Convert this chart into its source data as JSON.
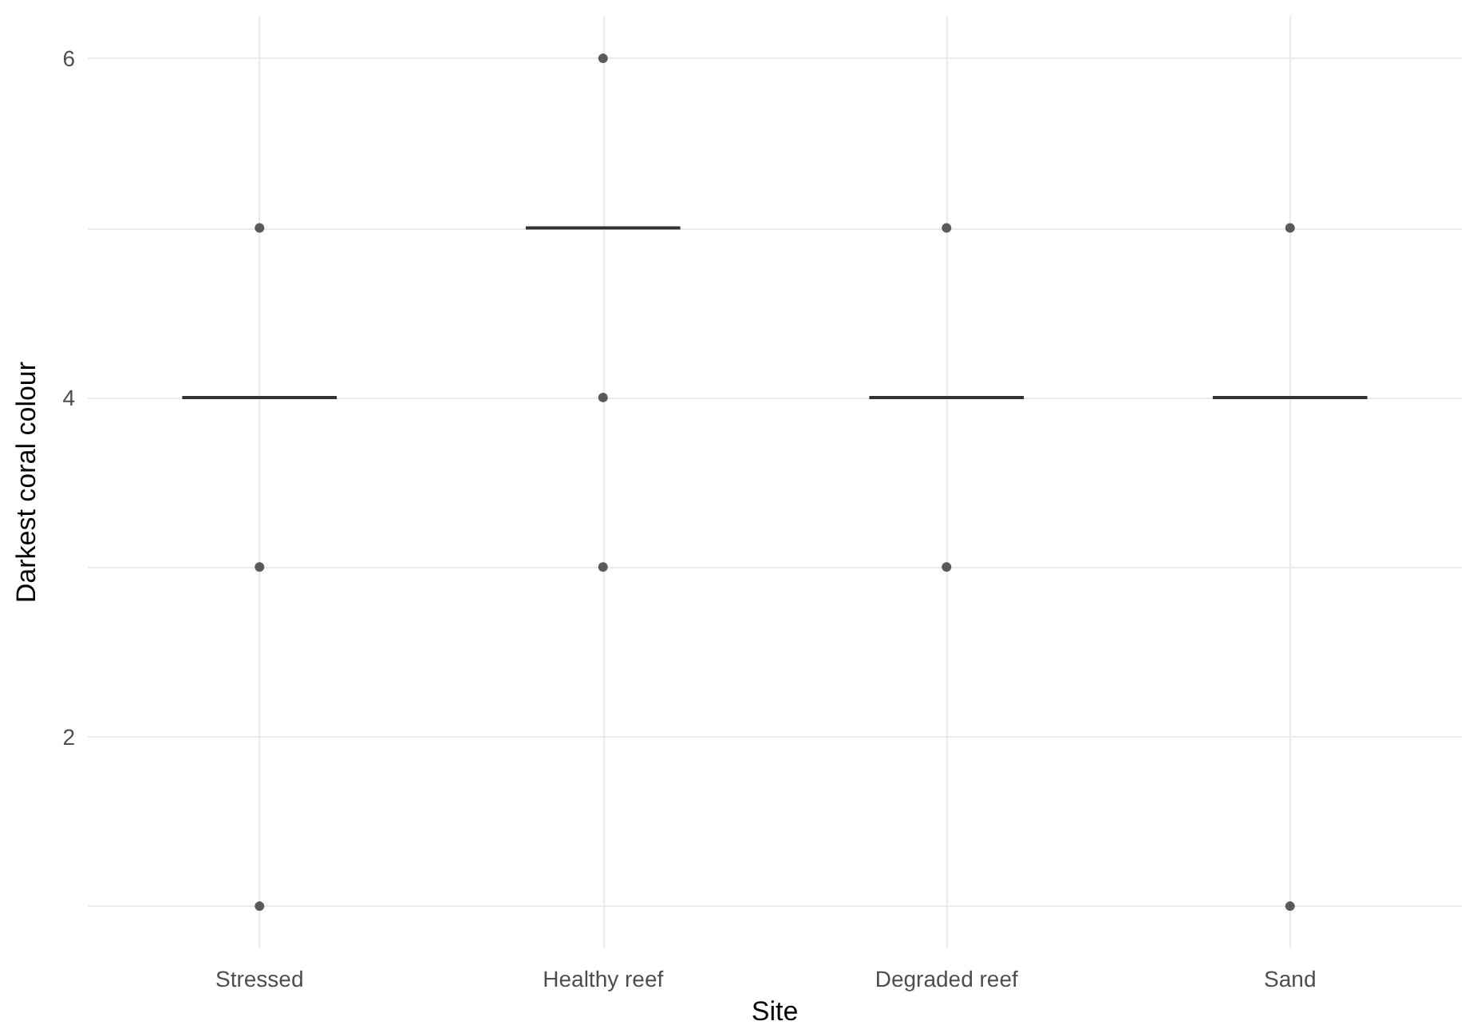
{
  "chart_data": {
    "type": "box",
    "xlabel": "Site",
    "ylabel": "Darkest coral colour",
    "categories": [
      "Stressed",
      "Healthy reef",
      "Degraded reef",
      "Sand"
    ],
    "color": "#333333",
    "boxes": [
      {
        "low": 4,
        "q1": 4,
        "median": 4,
        "q3": 4,
        "high": 4,
        "outliers": [
          1,
          3,
          5
        ]
      },
      {
        "low": 5,
        "q1": 5,
        "median": 5,
        "q3": 5,
        "high": 5,
        "outliers": [
          3,
          4,
          6
        ]
      },
      {
        "low": 4,
        "q1": 4,
        "median": 4,
        "q3": 4,
        "high": 4,
        "outliers": [
          3,
          5
        ]
      },
      {
        "low": 4,
        "q1": 4,
        "median": 4,
        "q3": 4,
        "high": 4,
        "outliers": [
          1,
          5
        ]
      }
    ],
    "ylim": [
      0.75,
      6.25
    ],
    "yticks": [
      {
        "value": 1,
        "label": null
      },
      2,
      {
        "value": 3,
        "label": null
      },
      4,
      {
        "value": 5,
        "label": null
      },
      6
    ],
    "grid": true
  }
}
